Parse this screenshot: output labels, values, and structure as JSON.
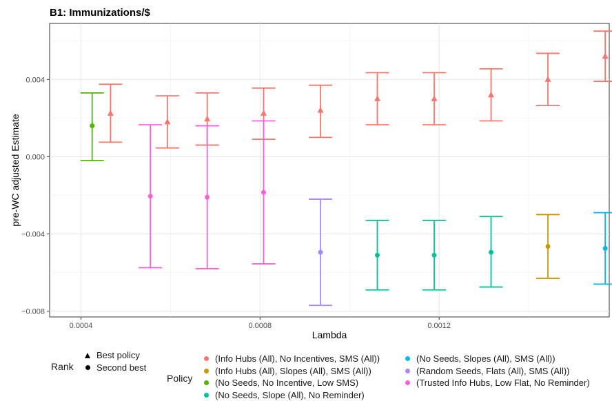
{
  "chart_data": {
    "type": "errorbar",
    "title": "B1: Immunizations/$",
    "xlabel": "Lambda",
    "ylabel": "pre-WC adjusted Estimate",
    "xlim": [
      0.00033,
      0.00158
    ],
    "ylim": [
      -0.0083,
      0.0069
    ],
    "x_ticks": [
      0.0004,
      0.0008,
      0.0012
    ],
    "x_tick_labels": [
      "0.0004",
      "0.0008",
      "0.0012"
    ],
    "y_ticks": [
      -0.008,
      -0.004,
      0.0,
      0.004
    ],
    "y_tick_labels": [
      "−0.008",
      "−0.004",
      "0.000",
      "0.004"
    ],
    "grid": true,
    "rank_legend": {
      "title": "Rank",
      "items": [
        {
          "label": "Best policy",
          "shape": "triangle"
        },
        {
          "label": "Second best",
          "shape": "circle"
        }
      ]
    },
    "policy_legend": {
      "title": "Policy",
      "items": [
        {
          "label": "(Info Hubs (All), No Incentives, SMS (All))",
          "color": "#F8766D"
        },
        {
          "label": "(Info Hubs (All), Slopes (All), SMS (All))",
          "color": "#C49A00"
        },
        {
          "label": "(No Seeds, No Incentive, Low SMS)",
          "color": "#53B400"
        },
        {
          "label": "(No Seeds, Slope (All), No Reminder)",
          "color": "#00C094"
        },
        {
          "label": "(No Seeds, Slopes (All), SMS (All))",
          "color": "#00B6EB"
        },
        {
          "label": "(Random Seeds, Flats (All), SMS (All))",
          "color": "#A58AFF"
        },
        {
          "label": "(Trusted Info Hubs, Low Flat, No Reminder)",
          "color": "#FB61D7"
        }
      ]
    },
    "series": [
      {
        "policy": 2,
        "rank": "second",
        "points": [
          {
            "x": 0.000425,
            "y": 0.0016,
            "lo": -0.0002,
            "hi": 0.0033
          }
        ]
      },
      {
        "policy": 0,
        "rank": "best",
        "points": [
          {
            "x": 0.000466,
            "y": 0.00225,
            "lo": 0.00075,
            "hi": 0.00375
          },
          {
            "x": 0.000593,
            "y": 0.0018,
            "lo": 0.00045,
            "hi": 0.00315
          },
          {
            "x": 0.000682,
            "y": 0.00195,
            "lo": 0.0006,
            "hi": 0.0033
          },
          {
            "x": 0.000808,
            "y": 0.00225,
            "lo": 0.0009,
            "hi": 0.00355
          },
          {
            "x": 0.000935,
            "y": 0.0024,
            "lo": 0.001,
            "hi": 0.0037
          },
          {
            "x": 0.001062,
            "y": 0.003,
            "lo": 0.00165,
            "hi": 0.00435
          },
          {
            "x": 0.001189,
            "y": 0.003,
            "lo": 0.00165,
            "hi": 0.00435
          },
          {
            "x": 0.001316,
            "y": 0.0032,
            "lo": 0.00185,
            "hi": 0.00455
          },
          {
            "x": 0.001443,
            "y": 0.004,
            "lo": 0.00265,
            "hi": 0.00535
          },
          {
            "x": 0.001571,
            "y": 0.0052,
            "lo": 0.0039,
            "hi": 0.0065
          }
        ]
      },
      {
        "policy": 6,
        "rank": "second",
        "points": [
          {
            "x": 0.000555,
            "y": -0.00205,
            "lo": -0.00575,
            "hi": 0.00165
          },
          {
            "x": 0.000682,
            "y": -0.0021,
            "lo": -0.0058,
            "hi": 0.0016
          },
          {
            "x": 0.000808,
            "y": -0.00185,
            "lo": -0.00555,
            "hi": 0.00185
          }
        ]
      },
      {
        "policy": 5,
        "rank": "second",
        "points": [
          {
            "x": 0.000935,
            "y": -0.00495,
            "lo": -0.0077,
            "hi": -0.0022
          }
        ]
      },
      {
        "policy": 3,
        "rank": "second",
        "points": [
          {
            "x": 0.001062,
            "y": -0.0051,
            "lo": -0.0069,
            "hi": -0.0033
          },
          {
            "x": 0.001189,
            "y": -0.0051,
            "lo": -0.0069,
            "hi": -0.0033
          },
          {
            "x": 0.001316,
            "y": -0.00495,
            "lo": -0.00675,
            "hi": -0.0031
          }
        ]
      },
      {
        "policy": 1,
        "rank": "second",
        "points": [
          {
            "x": 0.001443,
            "y": -0.00465,
            "lo": -0.0063,
            "hi": -0.003
          }
        ]
      },
      {
        "policy": 4,
        "rank": "second",
        "points": [
          {
            "x": 0.001571,
            "y": -0.00475,
            "lo": -0.0066,
            "hi": -0.0029
          }
        ]
      }
    ]
  }
}
